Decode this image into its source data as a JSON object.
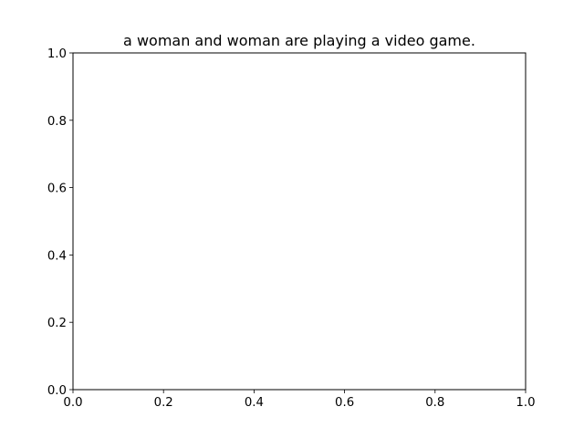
{
  "chart_data": {
    "type": "line",
    "title": "a woman and woman are playing a video game.",
    "xlabel": "",
    "ylabel": "",
    "xlim": [
      0.0,
      1.0
    ],
    "ylim": [
      0.0,
      1.0
    ],
    "x_ticks": [
      0.0,
      0.2,
      0.4,
      0.6,
      0.8,
      1.0
    ],
    "y_ticks": [
      0.0,
      0.2,
      0.4,
      0.6,
      0.8,
      1.0
    ],
    "x_tick_labels": [
      "0.0",
      "0.2",
      "0.4",
      "0.6",
      "0.8",
      "1.0"
    ],
    "y_tick_labels": [
      "0.0",
      "0.2",
      "0.4",
      "0.6",
      "0.8",
      "1.0"
    ],
    "series": [],
    "grid": false,
    "legend": "none",
    "colors": {
      "axes": "#000000",
      "background": "#ffffff",
      "text": "#000000"
    }
  }
}
